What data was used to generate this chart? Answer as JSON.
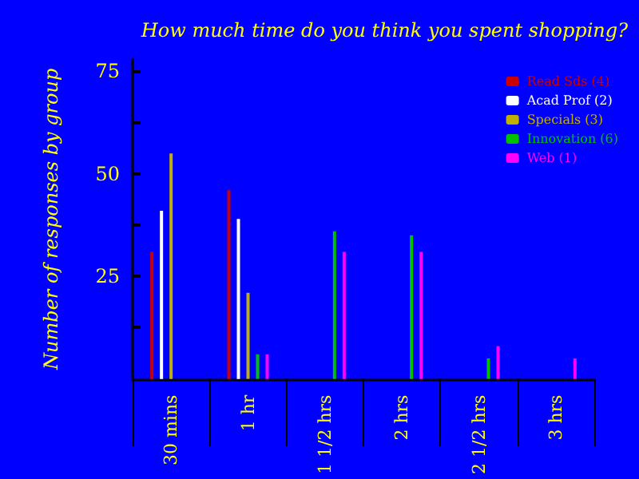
{
  "chart_data": {
    "type": "bar",
    "title": "How much time do you think you spent shopping?",
    "ylabel": "Number of responses by group",
    "categories": [
      "30 mins",
      "1 hr",
      "1 1/2 hrs",
      "2 hrs",
      "2 1/2 hrs",
      "3 hrs"
    ],
    "series": [
      {
        "name": "Read Sds (4)",
        "color": "#cc0000",
        "values": [
          31,
          46,
          null,
          null,
          null,
          null
        ]
      },
      {
        "name": "Acad Prof (2)",
        "color": "#ffffff",
        "values": [
          41,
          39,
          null,
          null,
          null,
          null
        ]
      },
      {
        "name": "Specials (3)",
        "color": "#c0b000",
        "values": [
          55,
          21,
          null,
          null,
          null,
          null
        ]
      },
      {
        "name": "Innovation (6)",
        "color": "#00c000",
        "values": [
          null,
          6,
          36,
          35,
          5,
          null
        ]
      },
      {
        "name": "Web (1)",
        "color": "#ff00ff",
        "values": [
          null,
          6,
          31,
          31,
          8,
          5
        ]
      }
    ],
    "ylim": [
      0,
      78
    ],
    "yticks": [
      {
        "value": 12.5,
        "label": null
      },
      25,
      {
        "value": 37.5,
        "label": null
      },
      50,
      {
        "value": 62.5,
        "label": null
      },
      75
    ],
    "grid": false,
    "legend": "top right"
  }
}
